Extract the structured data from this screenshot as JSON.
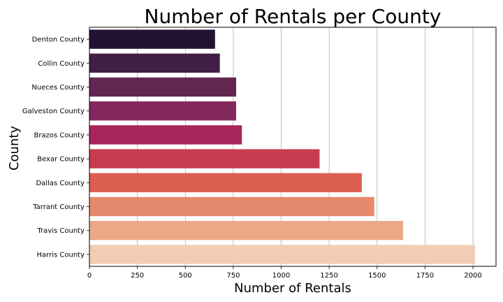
{
  "chart_data": {
    "type": "bar",
    "orientation": "horizontal",
    "title": "Number of Rentals per County",
    "xlabel": "Number of Rentals",
    "ylabel": "County",
    "categories": [
      "Denton County",
      "Collin County",
      "Nueces County",
      "Galveston County",
      "Brazos County",
      "Bexar County",
      "Dallas County",
      "Tarrant County",
      "Travis County",
      "Harris County"
    ],
    "values": [
      655,
      680,
      765,
      765,
      795,
      1200,
      1420,
      1485,
      1635,
      2010
    ],
    "colors": [
      "#221431",
      "#3f1f46",
      "#622650",
      "#83285c",
      "#a8265c",
      "#c93b53",
      "#dc5f51",
      "#e5896c",
      "#eba886",
      "#f1cdb4"
    ],
    "xlim": [
      0,
      2120
    ],
    "xticks": [
      0,
      250,
      500,
      750,
      1000,
      1250,
      1500,
      1750,
      2000
    ],
    "grid": "vertical"
  }
}
